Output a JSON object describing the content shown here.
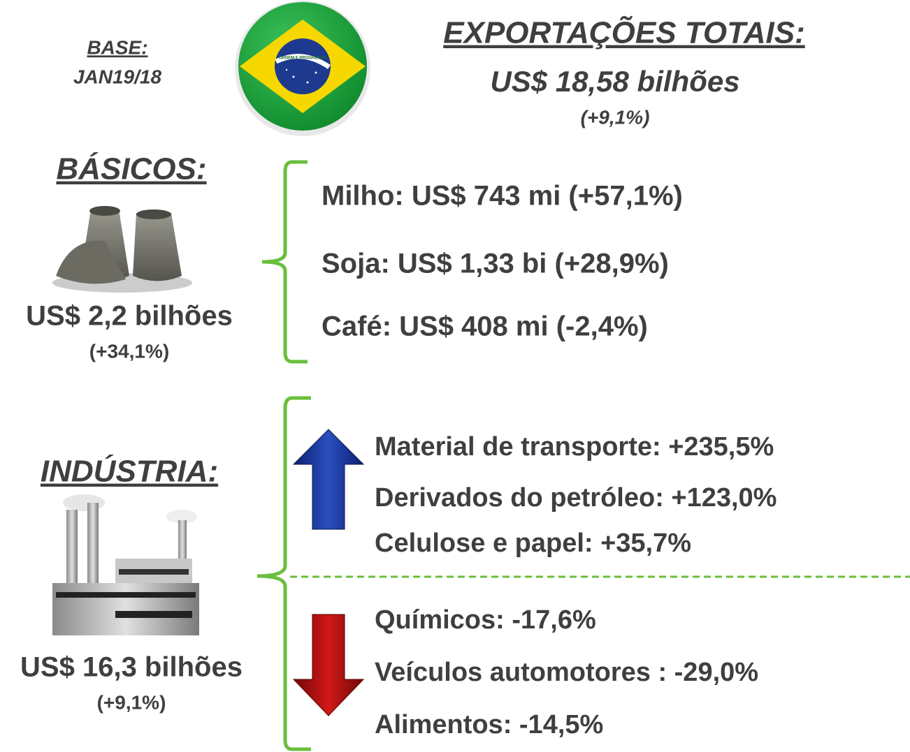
{
  "header": {
    "base_label": "BASE:",
    "base_period": "JAN19/18",
    "title": "EXPORTAÇÕES TOTAIS:",
    "total": "US$ 18,58 bilhões",
    "total_change": "(+9,1%)"
  },
  "flag": {
    "motto": "ORDEM E PROGRESSO"
  },
  "basicos": {
    "title": "BÁSICOS:",
    "total": "US$ 2,2 bilhões",
    "change": "(+34,1%)",
    "items": [
      "Milho: US$ 743 mi (+57,1%)",
      "Soja: US$ 1,33 bi (+28,9%)",
      "Café: US$ 408 mi (-2,4%)"
    ]
  },
  "industria": {
    "title": "INDÚSTRIA:",
    "total": "US$ 16,3 bilhões",
    "change": "(+9,1%)",
    "increases": [
      "Material de transporte: +235,5%",
      "Derivados do petróleo: +123,0%",
      "Celulose e papel: +35,7%"
    ],
    "decreases": [
      "Químicos: -17,6%",
      "Veículos automotores : -29,0%",
      "Alimentos: -14,5%"
    ]
  }
}
